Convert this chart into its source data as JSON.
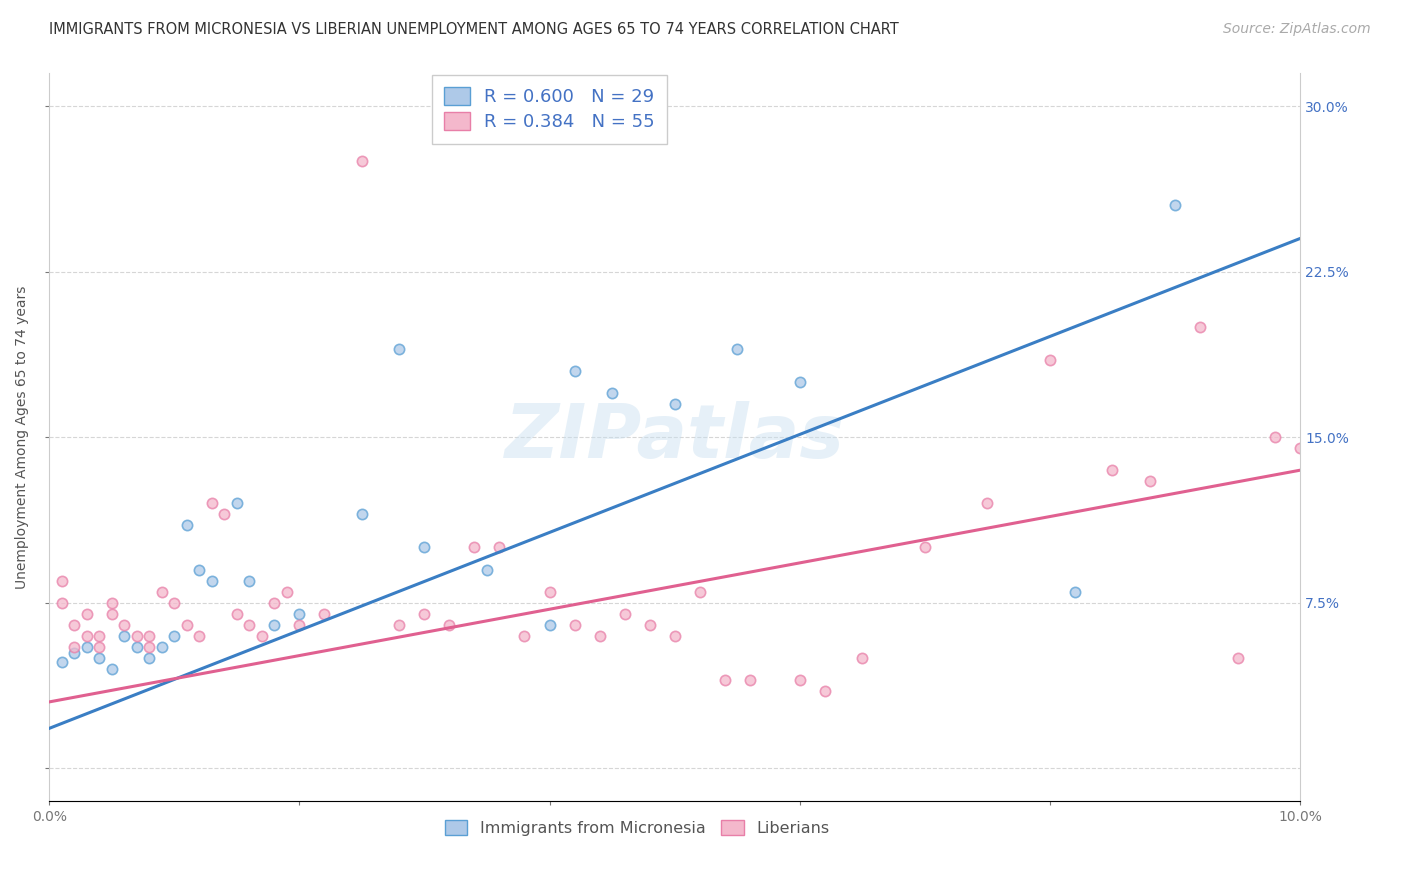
{
  "title": "IMMIGRANTS FROM MICRONESIA VS LIBERIAN UNEMPLOYMENT AMONG AGES 65 TO 74 YEARS CORRELATION CHART",
  "source": "Source: ZipAtlas.com",
  "ylabel": "Unemployment Among Ages 65 to 74 years",
  "xlim": [
    0.0,
    0.1
  ],
  "ylim": [
    -0.015,
    0.315
  ],
  "xticks": [
    0.0,
    0.02,
    0.04,
    0.06,
    0.08,
    0.1
  ],
  "xticklabels": [
    "0.0%",
    "",
    "",
    "",
    "",
    "10.0%"
  ],
  "yticks": [
    0.0,
    0.075,
    0.15,
    0.225,
    0.3
  ],
  "yticklabels_right": [
    "",
    "7.5%",
    "15.0%",
    "22.5%",
    "30.0%"
  ],
  "blue_R": 0.6,
  "blue_N": 29,
  "pink_R": 0.384,
  "pink_N": 55,
  "blue_fill_color": "#aec9e8",
  "pink_fill_color": "#f4b8cc",
  "blue_edge_color": "#5a9fd4",
  "pink_edge_color": "#e87fa8",
  "blue_line_color": "#3a7ec4",
  "pink_line_color": "#e06090",
  "legend_text_color": "#4472c4",
  "watermark": "ZIPatlas",
  "blue_scatter_x": [
    0.001,
    0.002,
    0.003,
    0.004,
    0.005,
    0.006,
    0.007,
    0.008,
    0.009,
    0.01,
    0.011,
    0.012,
    0.013,
    0.015,
    0.016,
    0.018,
    0.02,
    0.025,
    0.028,
    0.03,
    0.035,
    0.04,
    0.042,
    0.045,
    0.05,
    0.055,
    0.06,
    0.082,
    0.09
  ],
  "blue_scatter_y": [
    0.048,
    0.052,
    0.055,
    0.05,
    0.045,
    0.06,
    0.055,
    0.05,
    0.055,
    0.06,
    0.11,
    0.09,
    0.085,
    0.12,
    0.085,
    0.065,
    0.07,
    0.115,
    0.19,
    0.1,
    0.09,
    0.065,
    0.18,
    0.17,
    0.165,
    0.19,
    0.175,
    0.08,
    0.255
  ],
  "pink_scatter_x": [
    0.001,
    0.001,
    0.002,
    0.002,
    0.003,
    0.003,
    0.004,
    0.004,
    0.005,
    0.005,
    0.006,
    0.007,
    0.008,
    0.008,
    0.009,
    0.01,
    0.011,
    0.012,
    0.013,
    0.014,
    0.015,
    0.016,
    0.017,
    0.018,
    0.019,
    0.02,
    0.022,
    0.025,
    0.028,
    0.03,
    0.032,
    0.034,
    0.036,
    0.038,
    0.04,
    0.042,
    0.044,
    0.046,
    0.048,
    0.05,
    0.052,
    0.054,
    0.056,
    0.06,
    0.062,
    0.065,
    0.07,
    0.075,
    0.08,
    0.085,
    0.088,
    0.092,
    0.095,
    0.098,
    0.1
  ],
  "pink_scatter_y": [
    0.075,
    0.085,
    0.065,
    0.055,
    0.07,
    0.06,
    0.06,
    0.055,
    0.075,
    0.07,
    0.065,
    0.06,
    0.06,
    0.055,
    0.08,
    0.075,
    0.065,
    0.06,
    0.12,
    0.115,
    0.07,
    0.065,
    0.06,
    0.075,
    0.08,
    0.065,
    0.07,
    0.275,
    0.065,
    0.07,
    0.065,
    0.1,
    0.1,
    0.06,
    0.08,
    0.065,
    0.06,
    0.07,
    0.065,
    0.06,
    0.08,
    0.04,
    0.04,
    0.04,
    0.035,
    0.05,
    0.1,
    0.12,
    0.185,
    0.135,
    0.13,
    0.2,
    0.05,
    0.15,
    0.145
  ],
  "blue_trend_x": [
    0.0,
    0.1
  ],
  "blue_trend_y": [
    0.018,
    0.24
  ],
  "pink_trend_x": [
    0.0,
    0.1
  ],
  "pink_trend_y": [
    0.03,
    0.135
  ],
  "title_fontsize": 10.5,
  "axis_label_fontsize": 10,
  "tick_fontsize": 10,
  "legend_fontsize": 13,
  "source_fontsize": 10,
  "background_color": "#ffffff",
  "grid_color": "#cccccc",
  "marker_size": 55
}
